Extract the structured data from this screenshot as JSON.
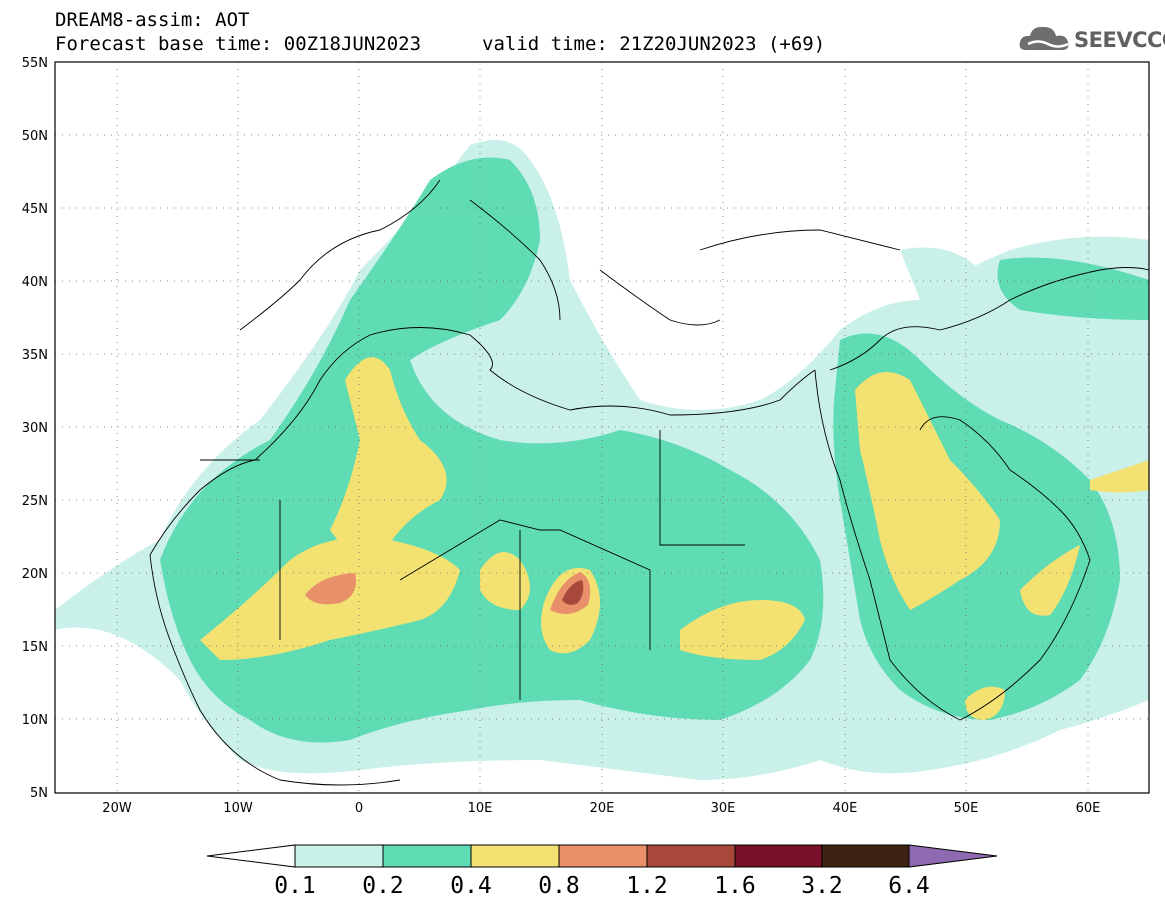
{
  "header": {
    "line1": "DREAM8-assim: AOT",
    "line2": "Forecast base time: 00Z18JUN2023",
    "line3": "valid time: 21Z20JUN2023 (+69)"
  },
  "logo": {
    "text": "SEEVCCC",
    "icon": "cloud-logo-icon"
  },
  "map": {
    "lon_range": [
      -25,
      65
    ],
    "lat_range": [
      5,
      55
    ],
    "lat_ticks": [
      "55N",
      "50N",
      "45N",
      "40N",
      "35N",
      "30N",
      "25N",
      "20N",
      "15N",
      "10N",
      "5N"
    ],
    "lon_ticks": [
      "20W",
      "10W",
      "0",
      "10E",
      "20E",
      "30E",
      "40E",
      "50E",
      "60E"
    ],
    "grid": "dotted"
  },
  "colorbar": {
    "labels": [
      "0.1",
      "0.2",
      "0.4",
      "0.8",
      "1.2",
      "1.6",
      "3.2",
      "6.4"
    ],
    "colors": [
      "#c9f0e9",
      "#5fdcb3",
      "#f3e272",
      "#e8906a",
      "#a8483a",
      "#7a0f2a",
      "#3d2412",
      "#8e6ab0"
    ]
  }
}
